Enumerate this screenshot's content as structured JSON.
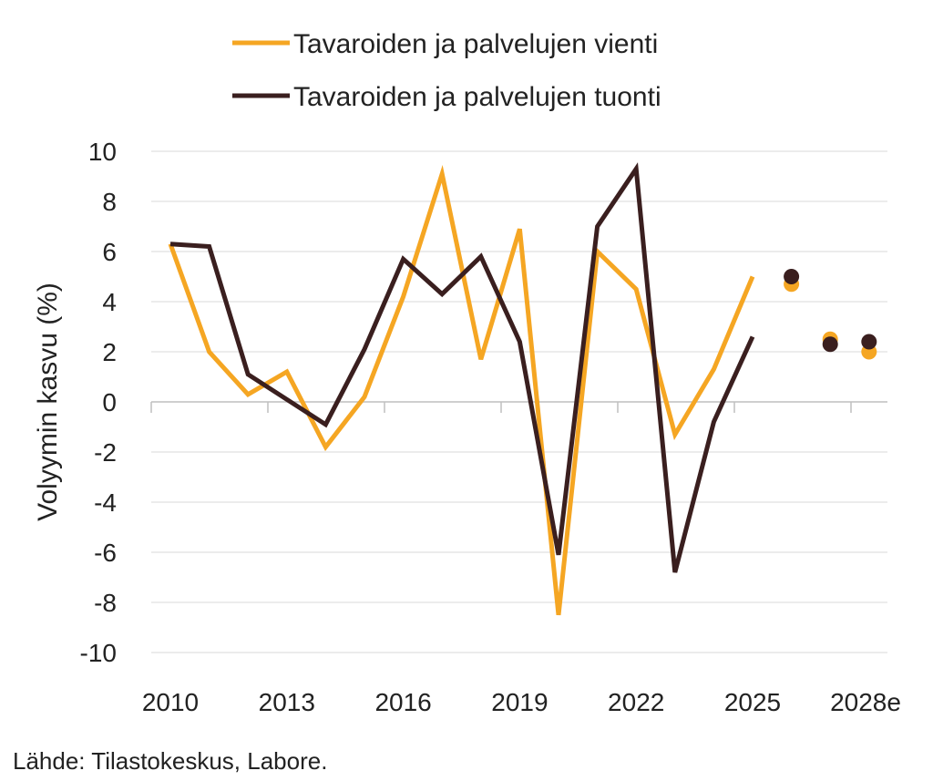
{
  "colors": {
    "export": "#F5A623",
    "import": "#3A1F1F",
    "grid": "#d9d9d9",
    "axis": "#bfbfbf"
  },
  "source": "Lähde: Tilastokeskus, Labore.",
  "chart_data": {
    "type": "line",
    "ylabel": "Volyymin kasvu (%)",
    "ylim": [
      -10,
      10
    ],
    "yticks": [
      "10",
      "8",
      "6",
      "4",
      "2",
      "0",
      "-2",
      "-4",
      "-6",
      "-8",
      "-10"
    ],
    "x": [
      2010,
      2011,
      2012,
      2013,
      2014,
      2015,
      2016,
      2017,
      2018,
      2019,
      2020,
      2021,
      2022,
      2023,
      2024,
      2025,
      2026,
      2027,
      2028
    ],
    "xtick_labels": [
      "2010",
      "2013",
      "2016",
      "2019",
      "2022",
      "2025",
      "2028e"
    ],
    "grid": true,
    "legend_position": "top",
    "series": [
      {
        "name": "Tavaroiden ja palvelujen vienti",
        "color": "#F5A623",
        "values": [
          6.3,
          2.0,
          0.3,
          1.2,
          -1.8,
          0.2,
          4.2,
          9.1,
          1.7,
          6.9,
          -8.5,
          6.0,
          4.5,
          -1.3,
          1.3,
          5.0,
          4.7,
          2.5,
          2.0
        ],
        "forecast_from": 2026
      },
      {
        "name": "Tavaroiden ja palvelujen tuonti",
        "color": "#3A1F1F",
        "values": [
          6.3,
          6.2,
          1.1,
          0.1,
          -0.9,
          2.1,
          5.7,
          4.3,
          5.8,
          2.4,
          -6.1,
          7.0,
          9.3,
          -6.8,
          -0.8,
          2.6,
          5.0,
          2.3,
          2.4
        ],
        "forecast_from": 2026
      }
    ]
  }
}
